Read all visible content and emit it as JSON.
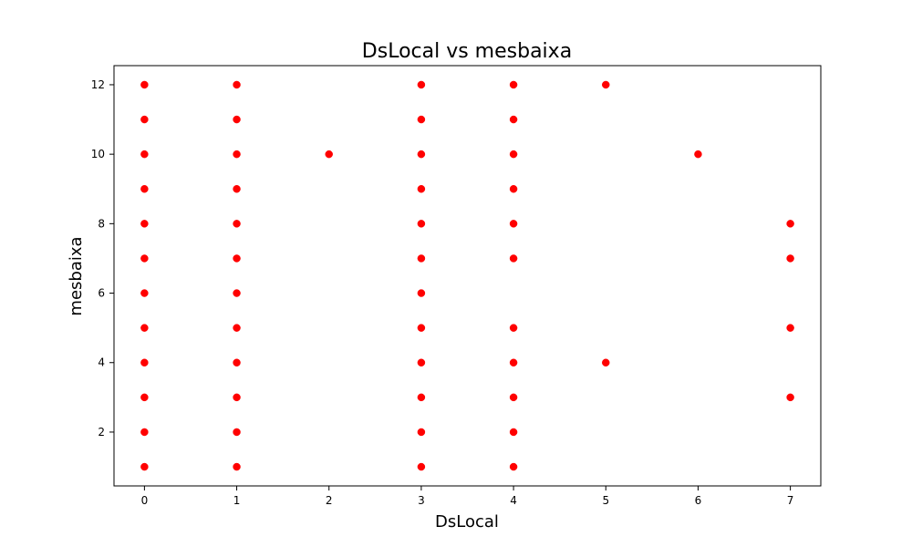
{
  "chart_data": {
    "type": "scatter",
    "title": "DsLocal vs mesbaixa",
    "xlabel": "DsLocal",
    "ylabel": "mesbaixa",
    "xlim": [
      -0.33,
      7.33
    ],
    "ylim": [
      0.45,
      12.55
    ],
    "xticks": [
      0,
      1,
      2,
      3,
      4,
      5,
      6,
      7
    ],
    "yticks": [
      2,
      4,
      6,
      8,
      10,
      12
    ],
    "grid": false,
    "marker_color": "#ff0000",
    "points": [
      {
        "x": 0,
        "y": 1
      },
      {
        "x": 0,
        "y": 2
      },
      {
        "x": 0,
        "y": 3
      },
      {
        "x": 0,
        "y": 4
      },
      {
        "x": 0,
        "y": 5
      },
      {
        "x": 0,
        "y": 6
      },
      {
        "x": 0,
        "y": 7
      },
      {
        "x": 0,
        "y": 8
      },
      {
        "x": 0,
        "y": 9
      },
      {
        "x": 0,
        "y": 10
      },
      {
        "x": 0,
        "y": 11
      },
      {
        "x": 0,
        "y": 12
      },
      {
        "x": 1,
        "y": 1
      },
      {
        "x": 1,
        "y": 2
      },
      {
        "x": 1,
        "y": 3
      },
      {
        "x": 1,
        "y": 4
      },
      {
        "x": 1,
        "y": 5
      },
      {
        "x": 1,
        "y": 6
      },
      {
        "x": 1,
        "y": 7
      },
      {
        "x": 1,
        "y": 8
      },
      {
        "x": 1,
        "y": 9
      },
      {
        "x": 1,
        "y": 10
      },
      {
        "x": 1,
        "y": 11
      },
      {
        "x": 1,
        "y": 12
      },
      {
        "x": 2,
        "y": 10
      },
      {
        "x": 3,
        "y": 1
      },
      {
        "x": 3,
        "y": 2
      },
      {
        "x": 3,
        "y": 3
      },
      {
        "x": 3,
        "y": 4
      },
      {
        "x": 3,
        "y": 5
      },
      {
        "x": 3,
        "y": 6
      },
      {
        "x": 3,
        "y": 7
      },
      {
        "x": 3,
        "y": 8
      },
      {
        "x": 3,
        "y": 9
      },
      {
        "x": 3,
        "y": 10
      },
      {
        "x": 3,
        "y": 11
      },
      {
        "x": 3,
        "y": 12
      },
      {
        "x": 4,
        "y": 1
      },
      {
        "x": 4,
        "y": 2
      },
      {
        "x": 4,
        "y": 3
      },
      {
        "x": 4,
        "y": 4
      },
      {
        "x": 4,
        "y": 5
      },
      {
        "x": 4,
        "y": 7
      },
      {
        "x": 4,
        "y": 8
      },
      {
        "x": 4,
        "y": 9
      },
      {
        "x": 4,
        "y": 10
      },
      {
        "x": 4,
        "y": 11
      },
      {
        "x": 4,
        "y": 12
      },
      {
        "x": 5,
        "y": 4
      },
      {
        "x": 5,
        "y": 12
      },
      {
        "x": 6,
        "y": 10
      },
      {
        "x": 7,
        "y": 3
      },
      {
        "x": 7,
        "y": 5
      },
      {
        "x": 7,
        "y": 7
      },
      {
        "x": 7,
        "y": 8
      }
    ]
  }
}
